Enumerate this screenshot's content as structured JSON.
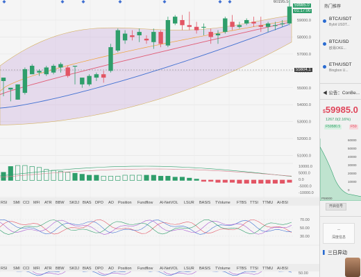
{
  "chart": {
    "price_axis": [
      "59000.0",
      "58000.0",
      "57000.0",
      "56000.0",
      "55000.0",
      "54000.0",
      "53000.0",
      "52000.0",
      "51000.0"
    ],
    "tags": {
      "high_label": "60195.5",
      "last_price": "59985.0",
      "countdown": "01:17:00",
      "mid_level": "55604.1"
    },
    "macd_axis": [
      "10000.0",
      "5000.0",
      "0.0",
      "-5000.0",
      "-10000.0"
    ],
    "osc_axis": [
      "70.00",
      "50.00",
      "30.00"
    ],
    "lower_axis": [
      "100.00",
      "50.00"
    ],
    "indicator_tabs": [
      "RSI",
      "SMI",
      "CCI",
      "MFI",
      "ATR",
      "BBW",
      "SKDJ",
      "BIAS",
      "DPO",
      "AO",
      "Position",
      "Fundflow",
      "AI-NetVOL",
      "LSUR",
      "BASIS",
      "TVolume",
      "FTBS",
      "TTSI",
      "TTMU",
      "AI-BSI"
    ],
    "colors": {
      "up": "#2f9e6b",
      "down": "#e25564",
      "band": "#c9a8dc",
      "ma_fast": "#f0a030",
      "ma_mid": "#e05a74",
      "ma_slow": "#3f6fd1"
    }
  },
  "panel": {
    "header": "热门推荐",
    "tickers": [
      {
        "symbol": "BTC/USDT",
        "sub": "Bybit USDT..."
      },
      {
        "symbol": "BTC/USD",
        "sub": "欧易OKE..."
      },
      {
        "symbol": "ETH/USDT",
        "sub": "Bingbon U..."
      }
    ],
    "announcement": "公告：ConBe...",
    "big_price": "59985.0",
    "change": "1267.0(2.16%)",
    "chip_green": "F59580.5",
    "chip_red": "F59",
    "depth_ask": "59492.5",
    "depth_axis": [
      "60000",
      "50000",
      "40000",
      "30000",
      "20000",
      "10000",
      "0"
    ],
    "depth_bottom": "P59000",
    "signal_button": "开启信号",
    "card_top": "--",
    "card_label": "深度信息",
    "section": "三日异动"
  }
}
